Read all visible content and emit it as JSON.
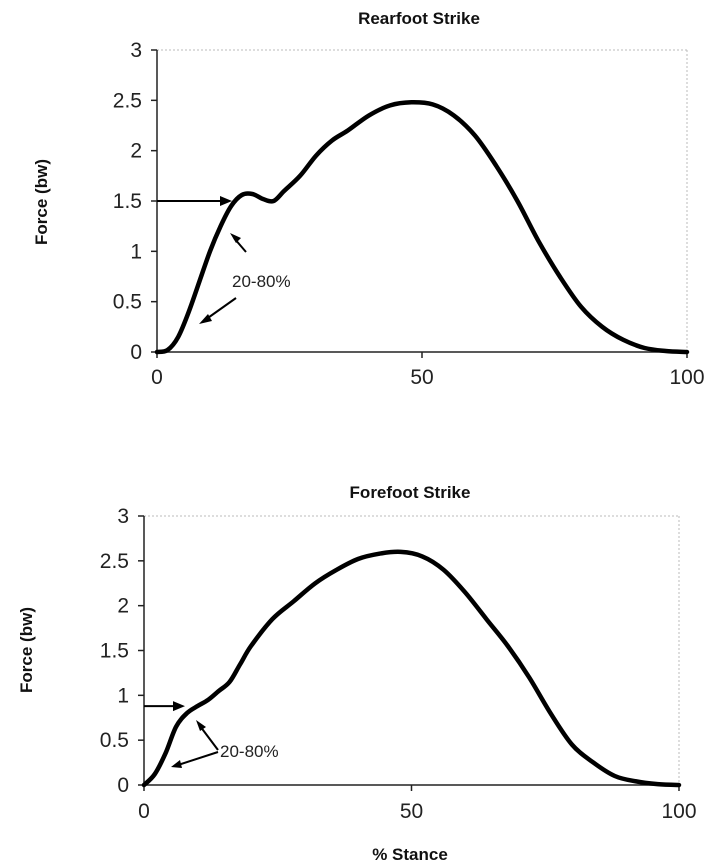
{
  "chart_data": [
    {
      "type": "line",
      "title": "Rearfoot Strike",
      "xlabel": "",
      "ylabel": "Force (bw)",
      "xlim": [
        0,
        100
      ],
      "ylim": [
        0,
        3
      ],
      "xticks": [
        "0",
        "50",
        "100"
      ],
      "yticks": [
        "0",
        "0.5",
        "1",
        "1.5",
        "2",
        "2.5",
        "3"
      ],
      "grid": false,
      "x": [
        0,
        2,
        4,
        6,
        8,
        10,
        12,
        14,
        16,
        18,
        20,
        22,
        24,
        27,
        30,
        33,
        36,
        40,
        44,
        48,
        52,
        56,
        60,
        64,
        68,
        72,
        76,
        80,
        84,
        88,
        92,
        96,
        100
      ],
      "y": [
        0,
        0.02,
        0.15,
        0.4,
        0.7,
        1.0,
        1.25,
        1.45,
        1.56,
        1.57,
        1.52,
        1.5,
        1.6,
        1.75,
        1.95,
        2.1,
        2.2,
        2.35,
        2.45,
        2.48,
        2.46,
        2.35,
        2.15,
        1.85,
        1.5,
        1.1,
        0.75,
        0.45,
        0.25,
        0.12,
        0.04,
        0.01,
        0
      ],
      "annotations": [
        {
          "text": "20-80%",
          "x": 14,
          "y": 0.7
        }
      ],
      "marker_force": 1.5
    },
    {
      "type": "line",
      "title": "Forefoot Strike",
      "xlabel": "% Stance",
      "ylabel": "Force (bw)",
      "xlim": [
        0,
        100
      ],
      "ylim": [
        0,
        3
      ],
      "xticks": [
        "0",
        "50",
        "100"
      ],
      "yticks": [
        "0",
        "0.5",
        "1",
        "1.5",
        "2",
        "2.5",
        "3"
      ],
      "grid": false,
      "x": [
        0,
        2,
        4,
        6,
        8,
        10,
        12,
        14,
        16,
        18,
        20,
        24,
        28,
        32,
        36,
        40,
        44,
        48,
        52,
        56,
        60,
        64,
        68,
        72,
        76,
        80,
        84,
        88,
        92,
        96,
        100
      ],
      "y": [
        0,
        0.12,
        0.35,
        0.65,
        0.8,
        0.88,
        0.95,
        1.05,
        1.15,
        1.35,
        1.55,
        1.85,
        2.05,
        2.25,
        2.4,
        2.52,
        2.58,
        2.6,
        2.55,
        2.4,
        2.15,
        1.85,
        1.55,
        1.2,
        0.8,
        0.45,
        0.25,
        0.1,
        0.04,
        0.01,
        0
      ],
      "annotations": [
        {
          "text": "20-80%",
          "x": 14,
          "y": 0.35
        }
      ],
      "marker_force": 0.88
    }
  ]
}
